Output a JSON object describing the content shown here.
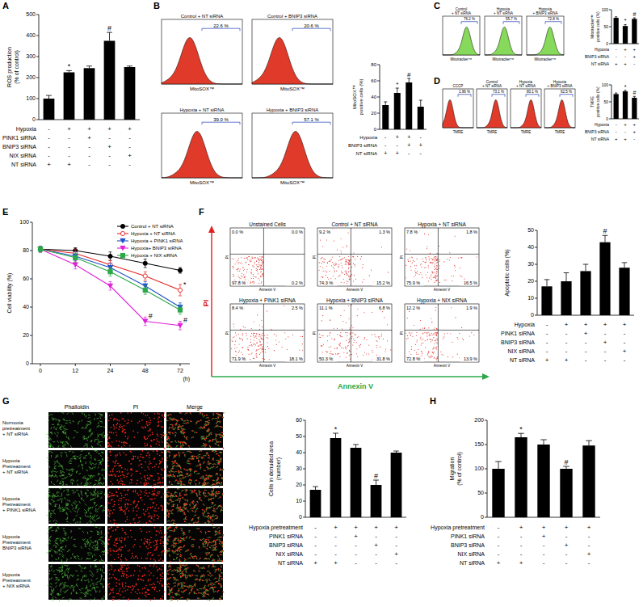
{
  "chart_data": [
    {
      "type": "bar",
      "y_label": [
        "ROS production",
        "(% of control)"
      ],
      "categories": [
        null,
        null,
        null,
        null,
        null
      ],
      "values": [
        100,
        225,
        245,
        375,
        250
      ],
      "errors": [
        15,
        8,
        10,
        40,
        5
      ],
      "significance": [
        null,
        "*",
        null,
        "#",
        null
      ],
      "color": "#000000",
      "ylim": [
        0,
        500
      ],
      "yticks": [
        0,
        100,
        200,
        300,
        400,
        500
      ],
      "conditions": [
        {
          "label": "Hypoxia",
          "signs": [
            "-",
            "+",
            "+",
            "+",
            "+"
          ]
        },
        {
          "label": "PINK1 siRNA",
          "signs": [
            "-",
            "-",
            "+",
            "-",
            "-"
          ]
        },
        {
          "label": "BNIP3 siRNA",
          "signs": [
            "-",
            "-",
            "-",
            "+",
            "-"
          ]
        },
        {
          "label": "NIX siRNA",
          "signs": [
            "-",
            "-",
            "-",
            "-",
            "+"
          ]
        },
        {
          "label": "NT siRNA",
          "signs": [
            "+",
            "+",
            "-",
            "-",
            "-"
          ]
        }
      ]
    },
    {
      "type": "bar",
      "y_label": [
        "MitoSOX™",
        "positive cells (%)"
      ],
      "categories": [
        null,
        null,
        null,
        null
      ],
      "values": [
        30,
        45,
        58,
        28
      ],
      "errors": [
        4,
        6,
        5,
        8
      ],
      "significance": [
        null,
        "*",
        "#",
        null
      ],
      "color": "#000000",
      "ylim": [
        0,
        80
      ],
      "yticks": [
        0,
        20,
        40,
        60,
        80
      ],
      "conditions": [
        {
          "label": "Hypoxia",
          "signs": [
            "-",
            "+",
            "+",
            "-"
          ]
        },
        {
          "label": "BNIP3 siRNA",
          "signs": [
            "-",
            "-",
            "+",
            "+"
          ]
        },
        {
          "label": "NT siRNA",
          "signs": [
            "+",
            "+",
            "-",
            "-"
          ]
        }
      ]
    },
    {
      "type": "bar",
      "y_label": [
        "Mitotracker™",
        "positive cells (%)"
      ],
      "categories": [
        null,
        null,
        null
      ],
      "values": [
        76,
        52,
        73
      ],
      "errors": [
        3,
        4,
        3
      ],
      "significance": [
        null,
        "*",
        "#"
      ],
      "color": "#000000",
      "ylim": [
        0,
        100
      ],
      "yticks": [
        0,
        50,
        100
      ],
      "conditions": [
        {
          "label": "Hypoxia",
          "signs": [
            "-",
            "+",
            "+"
          ]
        },
        {
          "label": "BNIP3 siRNA",
          "signs": [
            "-",
            "-",
            "+"
          ]
        },
        {
          "label": "NT siRNA",
          "signs": [
            "+",
            "+",
            "-"
          ]
        }
      ]
    },
    {
      "type": "bar",
      "y_label": [
        "TMRE",
        "positive cells (%)"
      ],
      "categories": [
        null,
        null,
        null
      ],
      "values": [
        73,
        81,
        62
      ],
      "errors": [
        3,
        3,
        4
      ],
      "significance": [
        null,
        "*",
        "#"
      ],
      "color": "#000000",
      "ylim": [
        0,
        100
      ],
      "yticks": [
        0,
        50,
        100
      ],
      "conditions": [
        {
          "label": "Hypoxia",
          "signs": [
            "-",
            "+",
            "+"
          ]
        },
        {
          "label": "BNIP3 siRNA",
          "signs": [
            "-",
            "-",
            "+"
          ]
        },
        {
          "label": "NT siRNA",
          "signs": [
            "+",
            "+",
            "-"
          ]
        }
      ]
    },
    {
      "type": "line",
      "y_label": [
        "Cell viability (%)"
      ],
      "x_label": "(h)",
      "categories": [
        "0",
        "12",
        "24",
        "48",
        "72"
      ],
      "ylim": [
        0,
        100
      ],
      "yticks": [
        0,
        20,
        40,
        60,
        80,
        100
      ],
      "legend": "top-right",
      "series": [
        {
          "name": "Control + NT siRNA",
          "color": "#000000",
          "marker": "circle",
          "values": [
            81,
            80,
            76,
            71,
            66
          ],
          "errors": [
            2,
            2,
            3,
            3,
            2
          ],
          "significance": [
            null,
            null,
            null,
            null,
            null
          ]
        },
        {
          "name": "Hypoxia + NT siRNA",
          "color": "#e8231f",
          "marker": "circle-open",
          "values": [
            81,
            78,
            70,
            62,
            52
          ],
          "errors": [
            2,
            3,
            3,
            3,
            4
          ],
          "significance": [
            null,
            null,
            null,
            null,
            "*"
          ]
        },
        {
          "name": "Hypoxia + PINK1 siRNA",
          "color": "#2050c8",
          "marker": "triangle-down",
          "values": [
            81,
            76,
            68,
            55,
            40
          ],
          "errors": [
            2,
            3,
            3,
            3,
            3
          ],
          "significance": [
            null,
            null,
            null,
            null,
            null
          ]
        },
        {
          "name": "Hypoxia+ BNIP3 siRNA",
          "color": "#e020d8",
          "marker": "triangle-down",
          "values": [
            81,
            70,
            55,
            30,
            27
          ],
          "errors": [
            2,
            3,
            3,
            3,
            3
          ],
          "significance": [
            null,
            null,
            null,
            "#",
            "#"
          ]
        },
        {
          "name": "Hypoxia + NIX siRNA",
          "color": "#2aa84a",
          "marker": "square",
          "values": [
            81,
            75,
            65,
            52,
            38
          ],
          "errors": [
            2,
            3,
            3,
            3,
            3
          ],
          "significance": [
            null,
            null,
            null,
            null,
            null
          ]
        }
      ]
    },
    {
      "type": "bar",
      "y_label": [
        "Apoptotic cells (%)"
      ],
      "categories": [
        null,
        null,
        null,
        null,
        null
      ],
      "values": [
        17,
        20,
        26,
        43,
        28
      ],
      "errors": [
        4,
        5,
        4,
        4,
        3
      ],
      "significance": [
        null,
        null,
        null,
        "#",
        null
      ],
      "color": "#000000",
      "ylim": [
        0,
        50
      ],
      "yticks": [
        0,
        10,
        20,
        30,
        40,
        50
      ],
      "conditions": [
        {
          "label": "Hypoxia",
          "signs": [
            "-",
            "+",
            "+",
            "+",
            "+"
          ]
        },
        {
          "label": "PINK1 siRNA",
          "signs": [
            "-",
            "-",
            "+",
            "-",
            "-"
          ]
        },
        {
          "label": "BNIP3 siRNA",
          "signs": [
            "-",
            "-",
            "-",
            "+",
            "-"
          ]
        },
        {
          "label": "NIX siRNA",
          "signs": [
            "-",
            "-",
            "-",
            "-",
            "+"
          ]
        },
        {
          "label": "NT siRNA",
          "signs": [
            "+",
            "+",
            "-",
            "-",
            "-"
          ]
        }
      ]
    },
    {
      "type": "bar",
      "y_label": [
        "Cells in denuded area",
        "(number)"
      ],
      "categories": [
        null,
        null,
        null,
        null,
        null
      ],
      "values": [
        17,
        49,
        43,
        20,
        40
      ],
      "errors": [
        2,
        3,
        2,
        3,
        1
      ],
      "significance": [
        null,
        "*",
        null,
        "#",
        null
      ],
      "color": "#000000",
      "ylim": [
        0,
        60
      ],
      "yticks": [
        0,
        10,
        20,
        30,
        40,
        50,
        60
      ],
      "conditions": [
        {
          "label": "Hypoxia pretreatment",
          "signs": [
            "-",
            "+",
            "+",
            "+",
            "+"
          ]
        },
        {
          "label": "PINK1 siRNA",
          "signs": [
            "-",
            "-",
            "+",
            "-",
            "-"
          ]
        },
        {
          "label": "BNIP3 siRNA",
          "signs": [
            "-",
            "-",
            "-",
            "+",
            "-"
          ]
        },
        {
          "label": "NIX siRNA",
          "signs": [
            "-",
            "-",
            "-",
            "-",
            "+"
          ]
        },
        {
          "label": "NT siRNA",
          "signs": [
            "+",
            "+",
            "-",
            "-",
            "-"
          ]
        }
      ]
    },
    {
      "type": "bar",
      "y_label": [
        "Migration",
        "(% of control)"
      ],
      "categories": [
        null,
        null,
        null,
        null,
        null
      ],
      "values": [
        100,
        165,
        150,
        100,
        148
      ],
      "errors": [
        15,
        8,
        10,
        5,
        10
      ],
      "significance": [
        null,
        "*",
        null,
        "#",
        null
      ],
      "color": "#000000",
      "ylim": [
        0,
        200
      ],
      "yticks": [
        0,
        50,
        100,
        150,
        200
      ],
      "conditions": [
        {
          "label": "Hypoxia pretreatment",
          "signs": [
            "-",
            "+",
            "+",
            "+",
            "+"
          ]
        },
        {
          "label": "PINK1 siRNA",
          "signs": [
            "-",
            "-",
            "+",
            "-",
            "-"
          ]
        },
        {
          "label": "BNIP3 siRNA",
          "signs": [
            "-",
            "-",
            "-",
            "+",
            "-"
          ]
        },
        {
          "label": "NIX siRNA",
          "signs": [
            "-",
            "-",
            "-",
            "-",
            "+"
          ]
        },
        {
          "label": "NT siRNA",
          "signs": [
            "+",
            "+",
            "-",
            "-",
            "-"
          ]
        }
      ]
    }
  ],
  "figure": {
    "panel_labels": [
      "A",
      "B",
      "C",
      "D",
      "E",
      "F",
      "G",
      "H"
    ],
    "flow_B": {
      "x_label": "MitoSOX™",
      "color": "#e03a2a",
      "plots": [
        {
          "title": "Control + NT siRNA",
          "gate": "22.6 %"
        },
        {
          "title": "Control + BNIP3 siRNA",
          "gate": "20.6 %"
        },
        {
          "title": "Hypoxia + NT siRNA",
          "gate": "39.0 %"
        },
        {
          "title": "Hypoxia + BNIP3 siRNA",
          "gate": "57.1 %"
        }
      ]
    },
    "flow_C": {
      "x_label": "Mitotracker™",
      "color": "#86d95a",
      "plots": [
        {
          "title": "Control + NT siRNA",
          "gate": "76.2 %"
        },
        {
          "title": "Hypoxia+ NT siRNA",
          "gate": "55.7 %"
        },
        {
          "title": "Hypoxia + BNIP3 siRNA",
          "gate": "72.8 %"
        }
      ]
    },
    "flow_D": {
      "x_label": "TMRE",
      "color": "#e03a2a",
      "plots": [
        {
          "title": "CCCP",
          "gate": "1.96 %"
        },
        {
          "title": "Control + NT siRNA",
          "gate": "73.1 %"
        },
        {
          "title": "Hypoxia + NT siRNA",
          "gate": "80.1 %"
        },
        {
          "title": "Hypoxia + BNIP3 siRNA",
          "gate": "62.5 %"
        }
      ]
    },
    "dot_F": {
      "x_label": "Annexin V",
      "y_label": "PI",
      "x_color": "#2aa84a",
      "y_color": "#e02020",
      "plots": [
        {
          "title": "Unstained Cells",
          "quadrants": [
            "0.0 %",
            "0.0 %",
            "97.8 %",
            "0.2 %"
          ]
        },
        {
          "title": "Control + NT siRNA",
          "quadrants": [
            "9.2 %",
            "1.3 %",
            "74.3 %",
            "15.2 %"
          ]
        },
        {
          "title": "Hypoxia + NT siRNA",
          "quadrants": [
            "7.8 %",
            "1.8 %",
            "75.9 %",
            "16.5 %"
          ]
        },
        {
          "title": "Hypoxia + PINK1 siRNA",
          "quadrants": [
            "8.4 %",
            "2.5 %",
            "71.9 %",
            "18.1 %"
          ]
        },
        {
          "title": "Hypoxia + BNIP3 siRNA",
          "quadrants": [
            "11.1 %",
            "6.8 %",
            "50.3 %",
            "31.8 %"
          ]
        },
        {
          "title": "Hypoxia + NIX siRNA",
          "quadrants": [
            "12.2 %",
            "1.9 %",
            "72.8 %",
            "13.9 %"
          ]
        }
      ]
    },
    "images_G": {
      "columns": [
        "Phalloidin",
        "PI",
        "Merge"
      ],
      "rows": [
        [
          "Normoxia",
          "pretreatment",
          "+ NT siRNA"
        ],
        [
          "Hypoxia",
          "Pretreatment",
          "+ NT siRNA"
        ],
        [
          "Hypoxia",
          "Pretreatment",
          "+ PINK1 siRNA"
        ],
        [
          "Hypoxia",
          "Pretreatment",
          "BNIP3 siRNA"
        ],
        [
          "Hypoxia",
          "Pretreatment",
          "+ NIX siRNA"
        ]
      ]
    }
  }
}
